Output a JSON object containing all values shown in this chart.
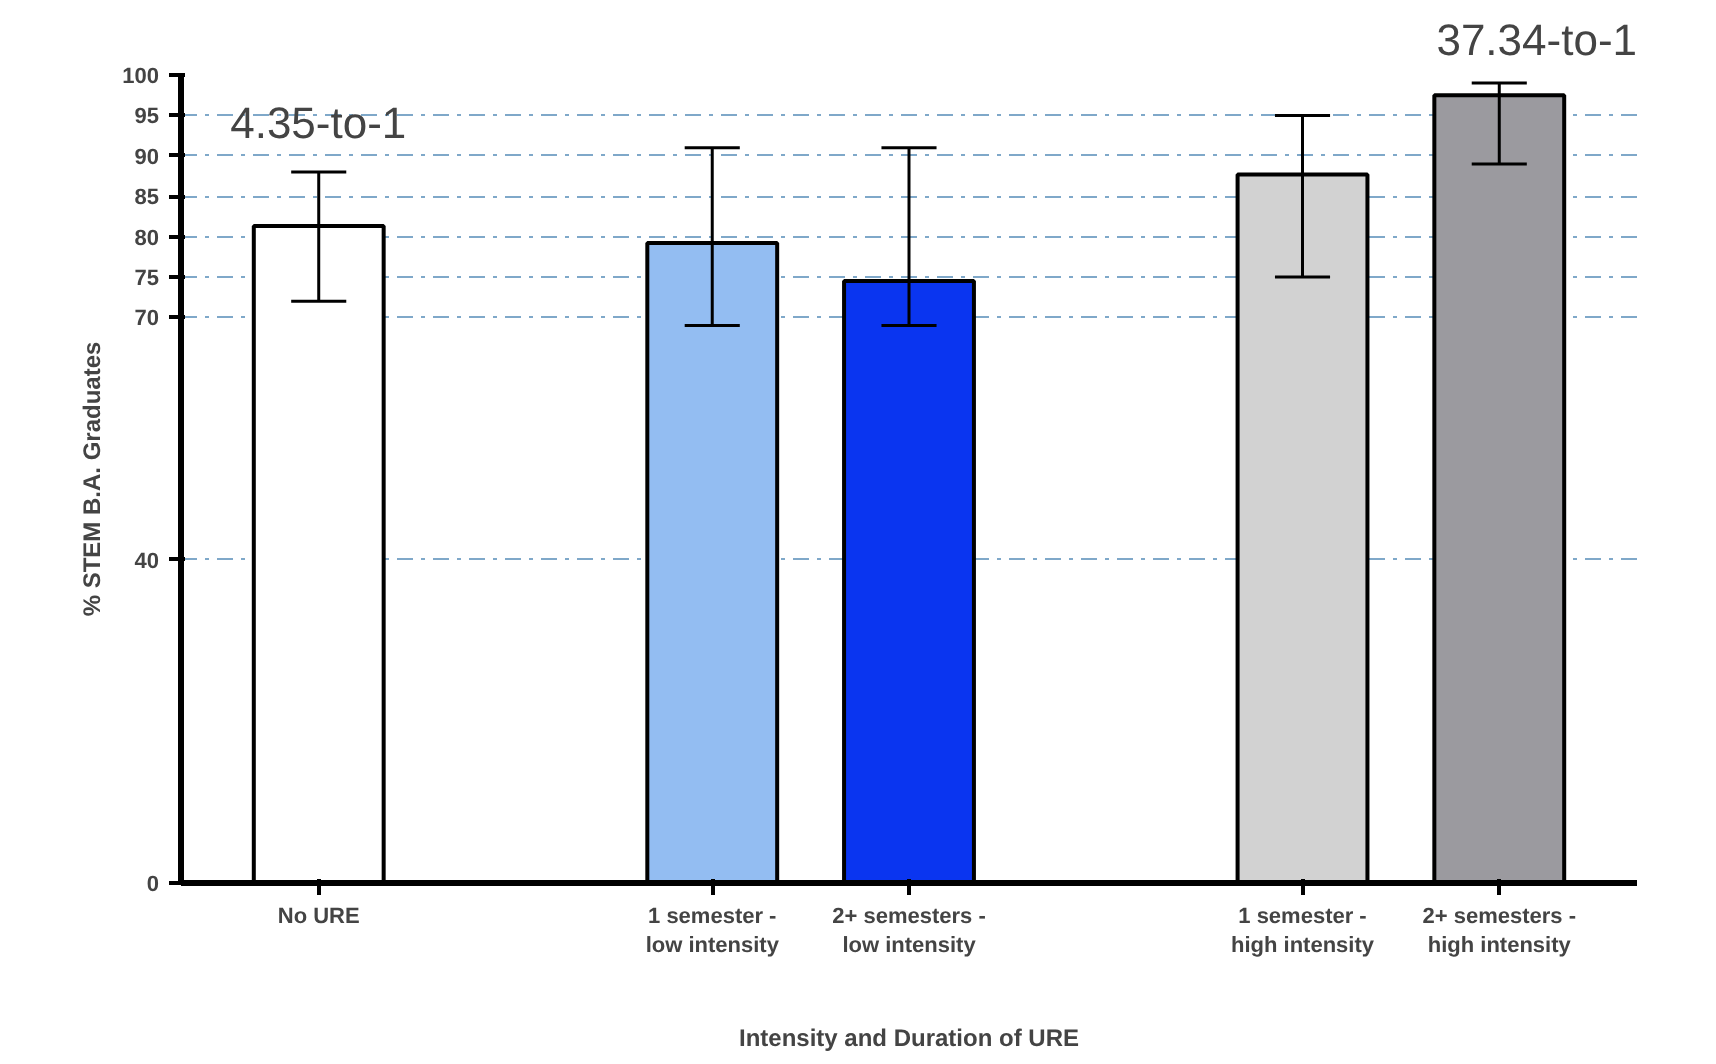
{
  "chart_data": {
    "type": "bar",
    "xlabel": "Intensity and Duration of URE",
    "ylabel": "% STEM B.A. Graduates",
    "categories": [
      "No URE",
      null,
      "1 semester -\nlow intensity",
      "2+ semesters -\nlow intensity",
      null,
      "1 semester -\nhigh intensity",
      "2+ semesters -\nhigh intensity"
    ],
    "values": [
      81.3,
      null,
      79.2,
      74.5,
      null,
      87.7,
      97.5
    ],
    "colors": [
      "#ffffff",
      "#ffffff",
      "#93bdf2",
      "#0a35f0",
      "#ffffff",
      "#d2d2d2",
      "#9b9a9f"
    ],
    "errors": [
      [
        72,
        88
      ],
      null,
      [
        69,
        91
      ],
      [
        69,
        91
      ],
      null,
      [
        75,
        95
      ],
      [
        89,
        99
      ]
    ],
    "ylim": [
      0,
      100
    ],
    "yticks": [
      0,
      40,
      70,
      75,
      80,
      85,
      90,
      95,
      100
    ],
    "grid": "y",
    "annotations": [
      "4.35-to-1",
      "37.34-to-1"
    ]
  }
}
